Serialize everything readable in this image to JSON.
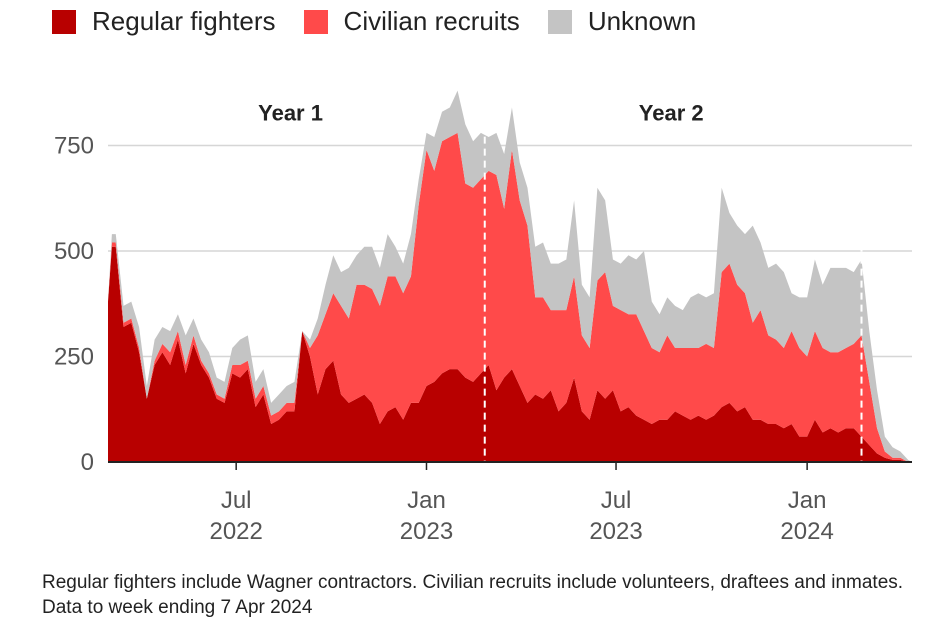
{
  "legend": {
    "regular": {
      "label": "Regular fighters",
      "color": "#b80000"
    },
    "civilian": {
      "label": "Civilian recruits",
      "color": "#ff4a4a"
    },
    "unknown": {
      "label": "Unknown",
      "color": "#c4c4c4"
    }
  },
  "footnote": "Regular fighters include Wagner contractors. Civilian recruits include volunteers, draftees and inmates. Data to week ending 7 Apr 2024",
  "chart_data": {
    "type": "area",
    "stacked": true,
    "title": "",
    "xlabel": "",
    "ylabel": "",
    "ylim": [
      0,
      1000
    ],
    "x_unit": "weeks since start of series (mid-Apr 2022)",
    "xlim": [
      0,
      103.5
    ],
    "yticks": [
      0,
      250,
      500,
      750
    ],
    "ytick_labels": [
      "0",
      "250",
      "500",
      "750"
    ],
    "xticks": [
      {
        "x": 16.5,
        "line1": "Jul",
        "line2": "2022"
      },
      {
        "x": 41.0,
        "line1": "Jan",
        "line2": "2023"
      },
      {
        "x": 65.4,
        "line1": "Jul",
        "line2": "2023"
      },
      {
        "x": 90.0,
        "line1": "Jan",
        "line2": "2024"
      }
    ],
    "annotations": [
      {
        "text": "Year 1",
        "x": 23.5,
        "y": 790
      },
      {
        "text": "Year 2",
        "x": 72.5,
        "y": 790
      }
    ],
    "dividers": [
      48.5,
      97.0
    ],
    "x": [
      0,
      0.5,
      1,
      2,
      3,
      4,
      5,
      6,
      7,
      8,
      9,
      10,
      11,
      12,
      13,
      14,
      15,
      16,
      17,
      18,
      19,
      20,
      21,
      22,
      23,
      24,
      25,
      26,
      27,
      28,
      29,
      30,
      31,
      32,
      33,
      34,
      35,
      36,
      37,
      38,
      39,
      40,
      41,
      42,
      43,
      44,
      45,
      46,
      47,
      48,
      49,
      50,
      51,
      52,
      53,
      54,
      55,
      56,
      57,
      58,
      59,
      60,
      61,
      62,
      63,
      64,
      65,
      66,
      67,
      68,
      69,
      70,
      71,
      72,
      73,
      74,
      75,
      76,
      77,
      78,
      79,
      80,
      81,
      82,
      83,
      84,
      85,
      86,
      87,
      88,
      89,
      90,
      91,
      92,
      93,
      94,
      95,
      96,
      97,
      98,
      99,
      100,
      101,
      102,
      103,
      103.5
    ],
    "series": [
      {
        "name": "Regular fighters",
        "values": [
          380,
          510,
          510,
          320,
          330,
          260,
          150,
          230,
          260,
          230,
          290,
          210,
          280,
          230,
          200,
          150,
          140,
          210,
          200,
          220,
          130,
          160,
          90,
          100,
          120,
          120,
          310,
          250,
          160,
          220,
          240,
          160,
          140,
          150,
          160,
          140,
          90,
          120,
          130,
          100,
          140,
          140,
          180,
          190,
          210,
          220,
          220,
          200,
          190,
          210,
          230,
          170,
          200,
          220,
          180,
          140,
          160,
          150,
          170,
          120,
          140,
          200,
          120,
          100,
          170,
          150,
          170,
          120,
          130,
          110,
          100,
          90,
          100,
          100,
          120,
          110,
          100,
          110,
          100,
          110,
          130,
          140,
          120,
          130,
          100,
          100,
          90,
          90,
          80,
          90,
          60,
          60,
          100,
          70,
          80,
          70,
          80,
          80,
          60,
          40,
          20,
          10,
          5,
          5,
          0,
          0
        ]
      },
      {
        "name": "Civilian recruits",
        "values": [
          0,
          10,
          10,
          10,
          10,
          10,
          0,
          10,
          20,
          30,
          20,
          20,
          20,
          10,
          10,
          10,
          10,
          20,
          30,
          20,
          20,
          20,
          20,
          20,
          20,
          20,
          0,
          20,
          140,
          130,
          160,
          210,
          200,
          270,
          260,
          270,
          280,
          320,
          310,
          300,
          300,
          470,
          560,
          500,
          550,
          550,
          560,
          460,
          460,
          460,
          460,
          510,
          400,
          520,
          440,
          420,
          230,
          240,
          190,
          240,
          220,
          240,
          180,
          170,
          260,
          300,
          200,
          240,
          220,
          240,
          210,
          180,
          160,
          200,
          150,
          160,
          170,
          160,
          180,
          160,
          320,
          330,
          300,
          270,
          230,
          260,
          210,
          200,
          190,
          220,
          210,
          190,
          210,
          200,
          180,
          190,
          190,
          200,
          240,
          150,
          60,
          15,
          5,
          5,
          0,
          0
        ]
      },
      {
        "name": "Unknown",
        "values": [
          0,
          20,
          20,
          40,
          40,
          50,
          30,
          50,
          40,
          50,
          40,
          70,
          40,
          50,
          50,
          40,
          40,
          40,
          60,
          60,
          40,
          40,
          30,
          40,
          40,
          50,
          0,
          20,
          40,
          70,
          90,
          80,
          120,
          70,
          90,
          100,
          90,
          100,
          70,
          70,
          100,
          60,
          40,
          80,
          70,
          70,
          100,
          140,
          110,
          110,
          80,
          100,
          130,
          100,
          90,
          90,
          120,
          130,
          110,
          110,
          120,
          180,
          120,
          120,
          220,
          170,
          110,
          110,
          140,
          130,
          190,
          110,
          90,
          90,
          100,
          90,
          120,
          130,
          110,
          130,
          200,
          120,
          140,
          140,
          230,
          160,
          160,
          180,
          180,
          90,
          120,
          140,
          170,
          150,
          200,
          200,
          190,
          170,
          180,
          120,
          90,
          35,
          25,
          15,
          5,
          0
        ]
      }
    ]
  }
}
